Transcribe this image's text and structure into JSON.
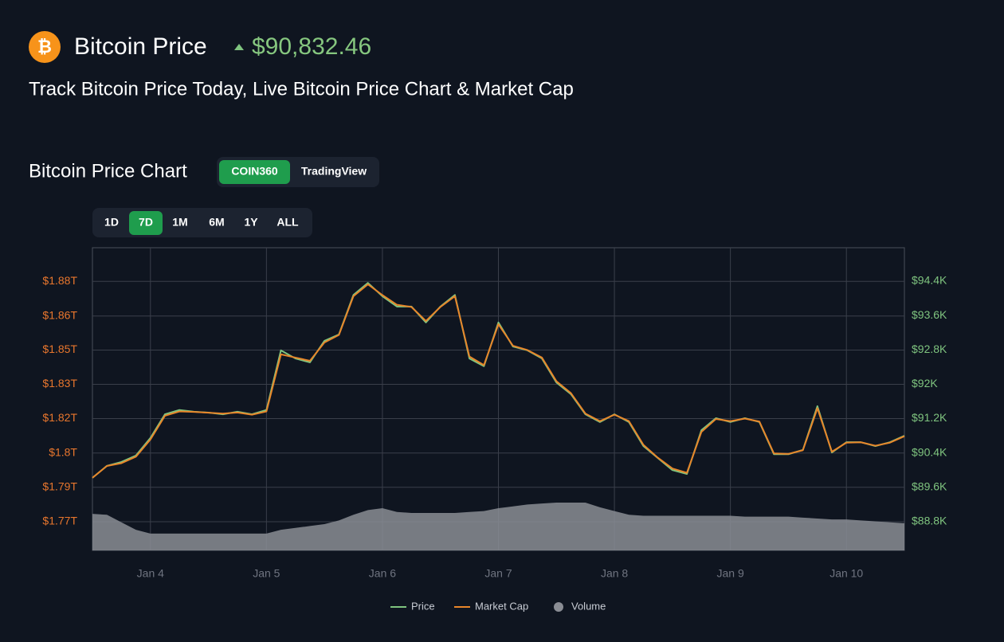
{
  "header": {
    "logo_symbol": "₿",
    "title": "Bitcoin Price",
    "price": "$90,832.46",
    "subtitle": "Track Bitcoin Price Today, Live Bitcoin Price Chart & Market Cap"
  },
  "section": {
    "title": "Bitcoin Price Chart",
    "sources": [
      "COIN360",
      "TradingView"
    ],
    "active_source": 0,
    "ranges": [
      "1D",
      "7D",
      "1M",
      "6M",
      "1Y",
      "ALL"
    ],
    "active_range": 1
  },
  "chart_data": {
    "type": "line",
    "categories": [
      null,
      null,
      null,
      null,
      "Jan 4",
      null,
      null,
      null,
      null,
      null,
      null,
      null,
      "Jan 5",
      null,
      null,
      null,
      null,
      null,
      null,
      null,
      "Jan 6",
      null,
      null,
      null,
      null,
      null,
      null,
      null,
      "Jan 7",
      null,
      null,
      null,
      null,
      null,
      null,
      null,
      "Jan 8",
      null,
      null,
      null,
      null,
      null,
      null,
      null,
      "Jan 9",
      null,
      null,
      null,
      null,
      null,
      null,
      null,
      "Jan 10",
      null,
      null,
      null,
      null
    ],
    "series": [
      {
        "name": "Price",
        "color": "#7fc47f",
        "axis": "y2",
        "values": [
          89820,
          90100,
          90190,
          90340,
          90750,
          91300,
          91400,
          91360,
          91340,
          91300,
          91360,
          91300,
          91400,
          92790,
          92600,
          92510,
          93010,
          93160,
          94080,
          94360,
          94050,
          93810,
          93810,
          93440,
          93810,
          94080,
          92600,
          92420,
          93440,
          92880,
          92790,
          92600,
          92040,
          91770,
          91300,
          91120,
          91300,
          91120,
          90560,
          90280,
          90000,
          89910,
          90930,
          91210,
          91120,
          91210,
          91120,
          90370,
          90370,
          90470,
          91490,
          90410,
          90650,
          90650,
          90560,
          90650,
          90800
        ]
      },
      {
        "name": "Market Cap",
        "color": "#e8862a",
        "values": [
          1.7897,
          1.7952,
          1.7965,
          1.7995,
          1.8075,
          1.8185,
          1.8205,
          1.8203,
          1.8199,
          1.8195,
          1.82,
          1.819,
          1.8205,
          1.847,
          1.8455,
          1.844,
          1.8525,
          1.856,
          1.874,
          1.8795,
          1.8745,
          1.87,
          1.869,
          1.8625,
          1.869,
          1.874,
          1.846,
          1.842,
          1.861,
          1.851,
          1.849,
          1.8455,
          1.8345,
          1.829,
          1.8195,
          1.816,
          1.819,
          1.816,
          1.805,
          1.799,
          1.794,
          1.792,
          1.811,
          1.817,
          1.816,
          1.8172,
          1.8158,
          1.801,
          1.8008,
          1.8025,
          1.822,
          1.8018,
          1.806,
          1.8062,
          1.8046,
          1.806,
          1.809
        ]
      },
      {
        "name": "Volume",
        "color": "#8a8d94",
        "type": "area",
        "values": [
          39,
          38,
          30,
          22,
          18,
          18,
          18,
          18,
          18,
          18,
          18,
          18,
          18,
          22,
          24,
          26,
          28,
          32,
          38,
          43,
          45,
          41,
          40,
          40,
          40,
          40,
          41,
          42,
          45,
          47,
          49,
          50,
          51,
          51,
          51,
          46,
          42,
          38,
          37,
          37,
          37,
          37,
          37,
          37,
          37,
          36,
          36,
          36,
          36,
          35,
          34,
          33,
          33,
          32,
          31,
          30,
          29
        ]
      }
    ],
    "ylim": [
      1.756,
      1.8965
    ],
    "yticks": [
      {
        "value": 1.7693,
        "label": "$1.77T"
      },
      {
        "value": 1.7853,
        "label": "$1.79T"
      },
      {
        "value": 1.8012,
        "label": "$1.8T"
      },
      {
        "value": 1.8172,
        "label": "$1.82T"
      },
      {
        "value": 1.8331,
        "label": "$1.83T"
      },
      {
        "value": 1.849,
        "label": "$1.85T"
      },
      {
        "value": 1.8648,
        "label": "$1.86T"
      },
      {
        "value": 1.8809,
        "label": "$1.88T"
      }
    ],
    "y2lim": [
      88130,
      95180
    ],
    "y2ticks": [
      {
        "value": 88800,
        "label": "$88.8K"
      },
      {
        "value": 89600,
        "label": "$89.6K"
      },
      {
        "value": 90400,
        "label": "$90.4K"
      },
      {
        "value": 91200,
        "label": "$91.2K"
      },
      {
        "value": 92000,
        "label": "$92K"
      },
      {
        "value": 92800,
        "label": "$92.8K"
      },
      {
        "value": 93600,
        "label": "$93.6K"
      },
      {
        "value": 94400,
        "label": "$94.4K"
      }
    ],
    "grid": true
  }
}
